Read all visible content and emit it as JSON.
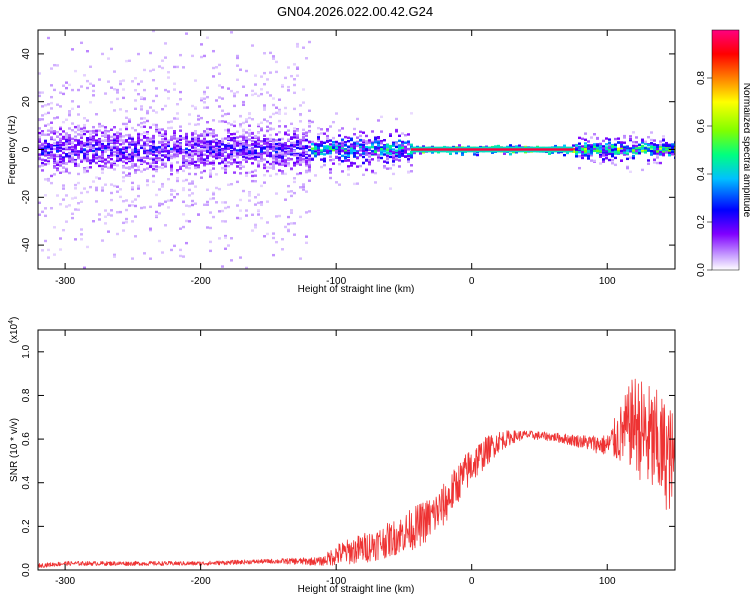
{
  "title": "GN04.2026.022.00.42.G24",
  "chart_data": [
    {
      "type": "heatmap",
      "xlabel": "Height of straight line (km)",
      "ylabel": "Frequency (Hz)",
      "xlim": [
        -320,
        150
      ],
      "ylim": [
        -50,
        50
      ],
      "xticks": [
        -300,
        -200,
        -100,
        0,
        100
      ],
      "yticks": [
        -40,
        -20,
        0,
        20,
        40
      ],
      "colorbar": {
        "label": "Normalized spectral amplitude",
        "range": [
          0.0,
          1.0
        ],
        "ticks": [
          0.0,
          0.2,
          0.4,
          0.6,
          0.8
        ],
        "colors": [
          "#ffffff",
          "#c8a0ff",
          "#8000ff",
          "#0000ff",
          "#00c0ff",
          "#00ff80",
          "#80ff00",
          "#ffff00",
          "#ff8000",
          "#ff0000",
          "#ff0080"
        ]
      },
      "regions": [
        {
          "x_range": [
            -320,
            -120
          ],
          "spread_hz": 45,
          "core_hz": 8,
          "peak_amplitude": 0.35
        },
        {
          "x_range": [
            -120,
            -45
          ],
          "spread_hz": 12,
          "core_hz": 4,
          "peak_amplitude": 0.6
        },
        {
          "x_range": [
            -45,
            75
          ],
          "spread_hz": 2,
          "core_hz": 1,
          "peak_amplitude": 1.0
        },
        {
          "x_range": [
            75,
            150
          ],
          "spread_hz": 6,
          "core_hz": 2,
          "peak_amplitude": 0.75
        }
      ],
      "grid": false
    },
    {
      "type": "line",
      "xlabel": "Height of straight line (km)",
      "ylabel": "SNR (10 * v/v)",
      "y_scale_label": "(x10",
      "y_scale_exponent": "4",
      "y_scale_suffix": ")",
      "xlim": [
        -320,
        150
      ],
      "ylim": [
        0,
        1.1
      ],
      "xticks": [
        -300,
        -200,
        -100,
        0,
        100
      ],
      "yticks": [
        0.0,
        0.2,
        0.4,
        0.6,
        0.8,
        1.0
      ],
      "color": "#ee3333",
      "series": [
        {
          "x": [
            -320,
            -300,
            -250,
            -200,
            -150,
            -110,
            -100,
            -80,
            -60,
            -40,
            -30,
            -20,
            -10,
            0,
            10,
            20,
            30,
            40,
            60,
            80,
            100,
            110,
            120,
            130,
            140,
            150
          ],
          "y": [
            0.02,
            0.03,
            0.03,
            0.03,
            0.04,
            0.04,
            0.07,
            0.1,
            0.14,
            0.2,
            0.24,
            0.3,
            0.4,
            0.48,
            0.54,
            0.59,
            0.61,
            0.62,
            0.61,
            0.59,
            0.57,
            0.62,
            0.68,
            0.6,
            0.55,
            0.48
          ],
          "noise": [
            0.01,
            0.01,
            0.01,
            0.01,
            0.01,
            0.02,
            0.05,
            0.07,
            0.08,
            0.1,
            0.1,
            0.1,
            0.09,
            0.09,
            0.07,
            0.05,
            0.03,
            0.02,
            0.02,
            0.03,
            0.05,
            0.14,
            0.22,
            0.26,
            0.26,
            0.24
          ]
        }
      ],
      "grid": false
    }
  ]
}
